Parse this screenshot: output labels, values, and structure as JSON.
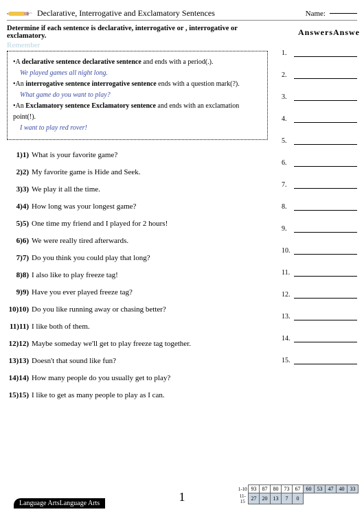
{
  "header": {
    "title": "Declarative, Interrogative and Exclamatory Sentences",
    "name_label": "Name:",
    "instruction": "Determine if each sentence is declarative, interrogative or , interrogative or exclamatory.",
    "answers_header": "AnswersAnswe",
    "remember": "Remember"
  },
  "rules": [
    {
      "bullet": "•A ",
      "bold": "declarative sentence declarative sentence",
      "rest": " and ends with a period(.).",
      "example": "We played games all night long."
    },
    {
      "bullet": "•An ",
      "bold": "interrogative sentence interrogative sentence",
      "rest": " ends with a question mark(?).",
      "example": "What game do you want to play?"
    },
    {
      "bullet": "•An ",
      "bold": "Exclamatory sentence Exclamatory sentence",
      "rest": " and ends with an exclamation point(!).",
      "example": "I want to play red rover!"
    }
  ],
  "questions": [
    {
      "num": "1)1)",
      "text": "What is your favorite game?"
    },
    {
      "num": "2)2)",
      "text": "My favorite game is Hide and Seek."
    },
    {
      "num": "3)3)",
      "text": "We play it all the time."
    },
    {
      "num": "4)4)",
      "text": "How long was your longest game?"
    },
    {
      "num": "5)5)",
      "text": "One time my friend and I played for 2 hours!"
    },
    {
      "num": "6)6)",
      "text": "We were really tired afterwards."
    },
    {
      "num": "7)7)",
      "text": "Do you think you could play that long?"
    },
    {
      "num": "8)8)",
      "text": "I also like to play freeze tag!"
    },
    {
      "num": "9)9)",
      "text": "Have you ever played freeze tag?"
    },
    {
      "num": "10)10)",
      "text": "Do you like running away or chasing better?"
    },
    {
      "num": "11)11)",
      "text": "I like both of them."
    },
    {
      "num": "12)12)",
      "text": "Maybe someday we'll get to play freeze tag together."
    },
    {
      "num": "13)13)",
      "text": "Doesn't that sound like fun?"
    },
    {
      "num": "14)14)",
      "text": "How many people do you usually get to play?"
    },
    {
      "num": "15)15)",
      "text": "I like to get as many people to play as I can."
    }
  ],
  "answer_count": 15,
  "footer": {
    "subject": "Language ArtsLanguage Arts",
    "page": "1",
    "score_rows": {
      "label1": "1-10",
      "label2": "11-15",
      "row1": [
        "93",
        "87",
        "80",
        "73",
        "67",
        "60",
        "53",
        "47",
        "40",
        "33"
      ],
      "row2": [
        "27",
        "20",
        "13",
        "7",
        "0"
      ]
    }
  },
  "colors": {
    "example": "#3a4aa8",
    "remember": "#b8d4e3",
    "shade": "#c8d4e0"
  }
}
